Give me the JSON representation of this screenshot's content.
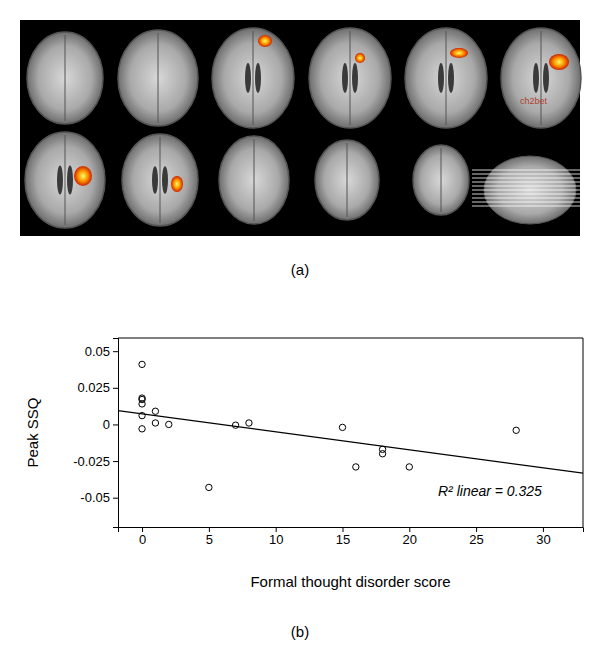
{
  "figure": {
    "panel_labels": [
      "(a)",
      "(b)"
    ],
    "image_label": "ch2bet"
  },
  "chart_data": {
    "type": "scatter",
    "x_label": "Formal thought disorder score",
    "y_label": "Peak SSQ",
    "x": [
      0,
      0,
      0,
      0,
      0,
      0,
      1,
      1,
      2,
      5,
      7,
      8,
      15,
      16,
      18,
      18,
      20,
      28
    ],
    "values": [
      0.041,
      0.018,
      0.017,
      0.014,
      0.006,
      -0.003,
      0.009,
      0.001,
      0.0,
      -0.043,
      -0.0005,
      0.001,
      -0.002,
      -0.029,
      -0.017,
      -0.02,
      -0.029,
      -0.004
    ],
    "marker": "circle",
    "color": "#000000",
    "xlim": [
      -1.8,
      33
    ],
    "ylim": [
      -0.07,
      0.059
    ],
    "xticks": [
      0,
      5,
      10,
      15,
      20,
      25,
      30
    ],
    "yticks": [
      -0.05,
      -0.025,
      0,
      0.025,
      0.05
    ],
    "fit_line": {
      "x": [
        -1.8,
        33
      ],
      "values": [
        0.0095,
        -0.0333
      ]
    },
    "annotations": [
      {
        "text": "R² linear = 0.325"
      }
    ]
  }
}
